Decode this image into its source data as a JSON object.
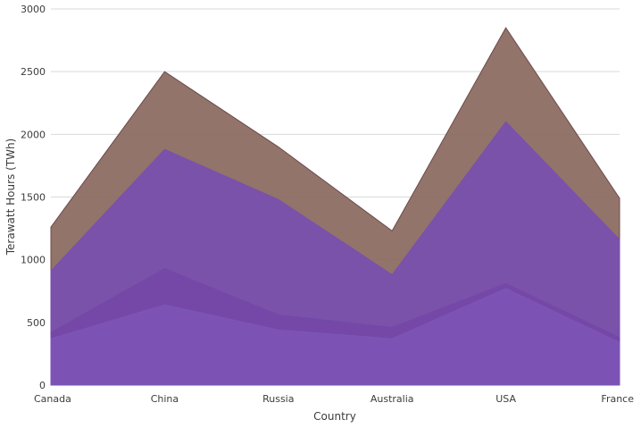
{
  "chart_data": {
    "type": "area",
    "categories": [
      "Canada",
      "China",
      "Russia",
      "Australia",
      "USA",
      "France"
    ],
    "series": [
      {
        "values": [
          1260,
          2500,
          1900,
          1230,
          2850,
          1490
        ],
        "color": "#8c6d62",
        "stroke": "#6d4a4a"
      },
      {
        "values": [
          910,
          1880,
          1480,
          880,
          2100,
          1160
        ],
        "color": "#7a4fb0",
        "stroke": "#7a4fb0"
      },
      {
        "values": [
          420,
          930,
          560,
          460,
          810,
          380
        ],
        "color": "#7448a8",
        "stroke": "#7448a8"
      },
      {
        "values": [
          370,
          640,
          440,
          370,
          770,
          340
        ],
        "color": "#7d55b5",
        "stroke": "#7d55b5"
      }
    ],
    "xlabel": "Country",
    "ylabel": "Terawatt Hours (TWh)",
    "ylim": [
      0,
      3000
    ],
    "yticks": [
      0,
      500,
      1000,
      1500,
      2000,
      2500,
      3000
    ],
    "grid": true
  }
}
